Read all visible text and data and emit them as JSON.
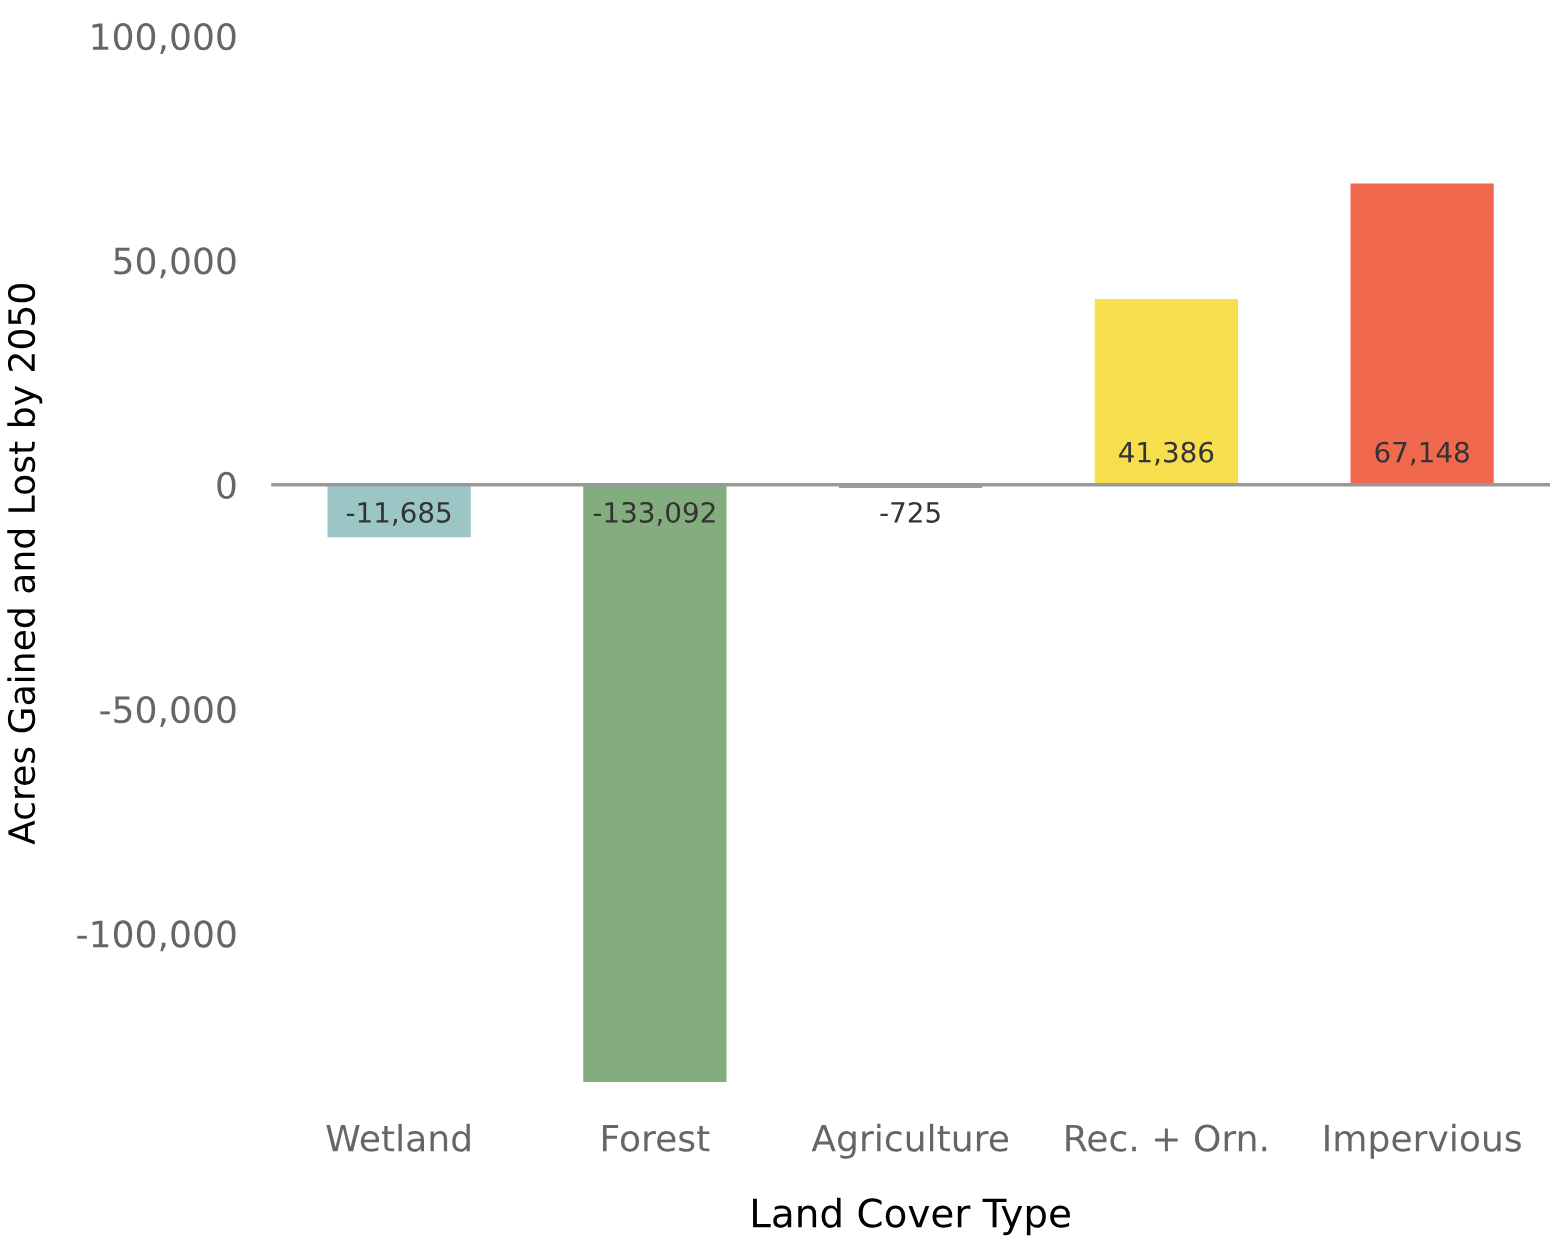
{
  "chart_data": {
    "type": "bar",
    "xlabel": "Land Cover Type",
    "ylabel": "Acres Gained and Lost by 2050",
    "categories": [
      "Wetland",
      "Forest",
      "Agriculture",
      "Rec. + Orn.",
      "Impervious"
    ],
    "values": [
      -11685,
      -133092,
      -725,
      41386,
      67148
    ],
    "colors": [
      "#9cc6c6",
      "#83ad7e",
      "#a3a27a",
      "#f7de4c",
      "#f0684e"
    ],
    "ylim": [
      -135000,
      100000
    ],
    "yticks": [
      {
        "value": -100000,
        "label": "-100,000"
      },
      {
        "value": -50000,
        "label": "-50,000"
      },
      {
        "value": 0,
        "label": "0"
      },
      {
        "value": 50000,
        "label": "50,000"
      },
      {
        "value": 100000,
        "label": "100,000"
      }
    ],
    "value_labels": [
      "-11,685",
      "-133,092",
      "-725",
      "41,386",
      "67,148"
    ]
  }
}
